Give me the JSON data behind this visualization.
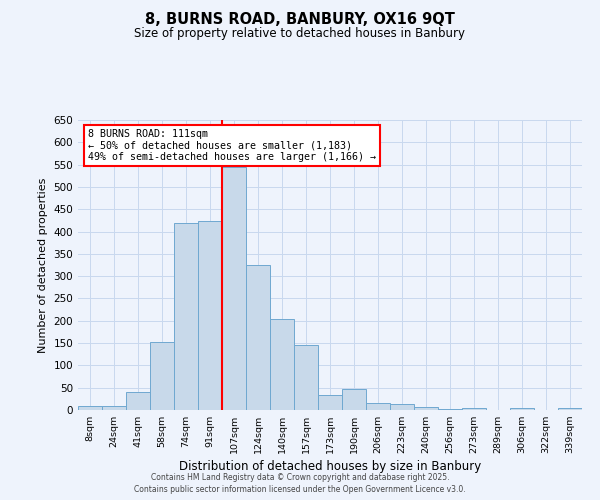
{
  "title": "8, BURNS ROAD, BANBURY, OX16 9QT",
  "subtitle": "Size of property relative to detached houses in Banbury",
  "xlabel": "Distribution of detached houses by size in Banbury",
  "ylabel": "Number of detached properties",
  "bar_labels": [
    "8sqm",
    "24sqm",
    "41sqm",
    "58sqm",
    "74sqm",
    "91sqm",
    "107sqm",
    "124sqm",
    "140sqm",
    "157sqm",
    "173sqm",
    "190sqm",
    "206sqm",
    "223sqm",
    "240sqm",
    "256sqm",
    "273sqm",
    "289sqm",
    "306sqm",
    "322sqm",
    "339sqm"
  ],
  "bar_values": [
    8,
    8,
    40,
    153,
    420,
    423,
    545,
    325,
    205,
    145,
    33,
    48,
    15,
    13,
    7,
    3,
    5,
    0,
    5,
    0,
    5
  ],
  "bar_color": "#c8d9ea",
  "bar_edge_color": "#6fa8d0",
  "grid_color": "#c8d8ee",
  "background_color": "#eef3fc",
  "vline_x_idx": 6,
  "vline_color": "red",
  "annotation_title": "8 BURNS ROAD: 111sqm",
  "annotation_line1": "← 50% of detached houses are smaller (1,183)",
  "annotation_line2": "49% of semi-detached houses are larger (1,166) →",
  "annotation_box_color": "white",
  "annotation_box_edge": "red",
  "ylim": [
    0,
    650
  ],
  "yticks": [
    0,
    50,
    100,
    150,
    200,
    250,
    300,
    350,
    400,
    450,
    500,
    550,
    600,
    650
  ],
  "footer1": "Contains HM Land Registry data © Crown copyright and database right 2025.",
  "footer2": "Contains public sector information licensed under the Open Government Licence v3.0."
}
